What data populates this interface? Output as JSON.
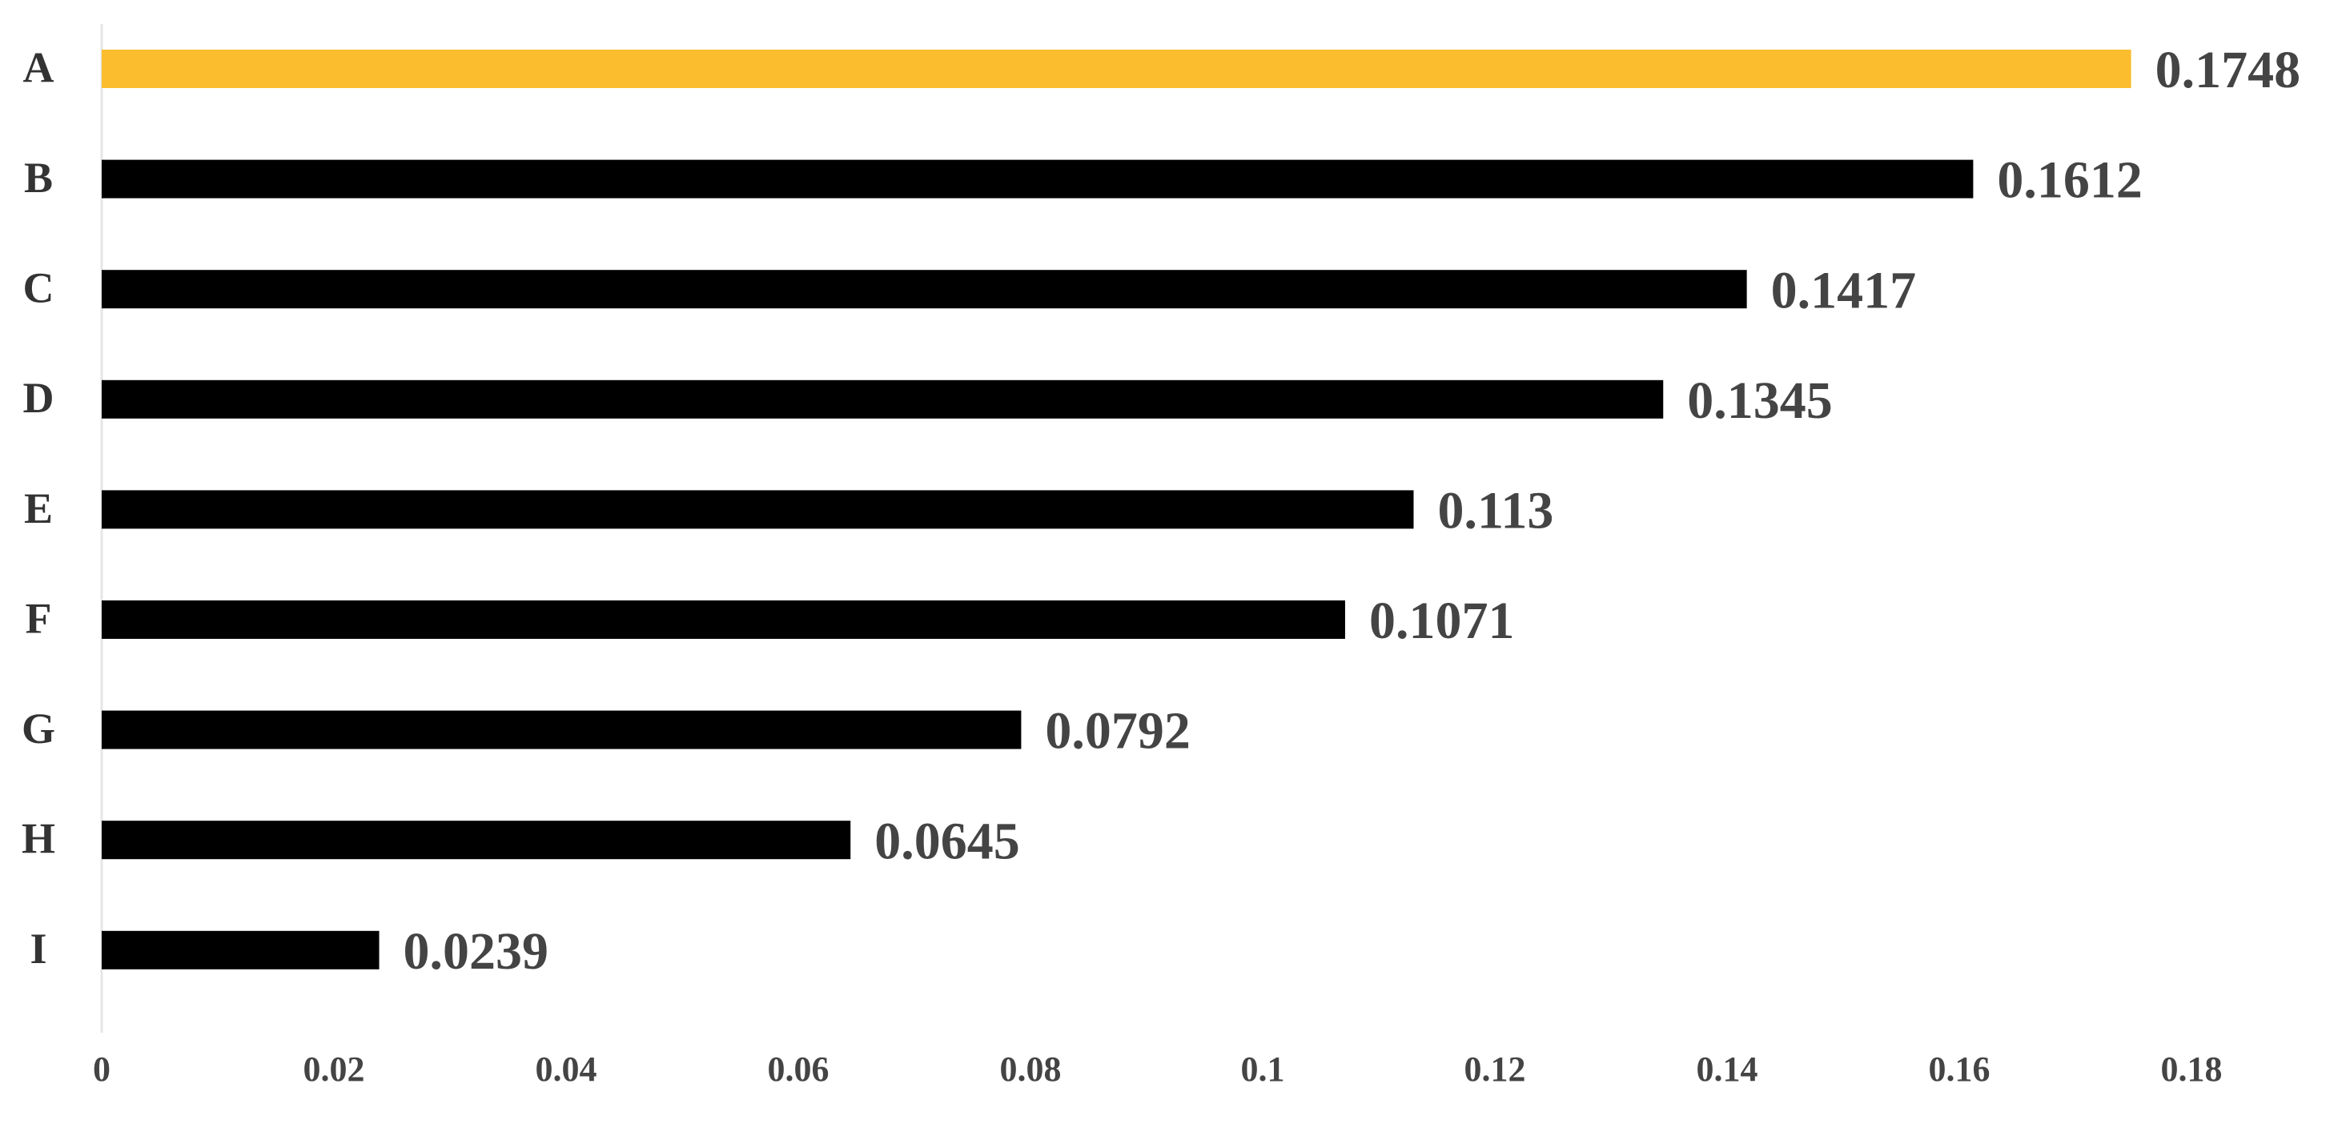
{
  "chart_data": {
    "type": "bar",
    "orientation": "horizontal",
    "categories": [
      "A",
      "B",
      "C",
      "D",
      "E",
      "F",
      "G",
      "H",
      "I"
    ],
    "values": [
      0.1748,
      0.1612,
      0.1417,
      0.1345,
      0.113,
      0.1071,
      0.0792,
      0.0645,
      0.0239
    ],
    "colors": [
      "#fbbc2d",
      "#000000",
      "#000000",
      "#000000",
      "#000000",
      "#000000",
      "#000000",
      "#000000",
      "#000000"
    ],
    "xlim": [
      0,
      0.18
    ],
    "xticks": [
      0,
      0.02,
      0.04,
      0.06,
      0.08,
      0.1,
      0.12,
      0.14,
      0.16,
      0.18
    ],
    "grid": false
  }
}
